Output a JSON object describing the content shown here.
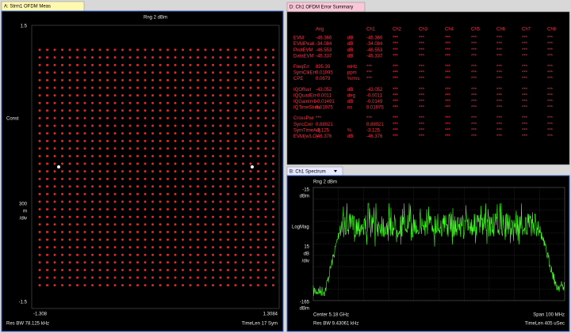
{
  "panels": {
    "constellation": {
      "tab": "A: Strm1 OFDM Meas",
      "range": "Rng 2 dBm",
      "y_top": "1.5",
      "y_mid": "Const",
      "scale": [
        "300",
        "m",
        "/div"
      ],
      "y_bottom": "-1.5",
      "x_left": "-1.308",
      "x_right": "1.3084",
      "res_bw": "Res BW 78.125 kHz",
      "time_len": "TimeLen 17  Sym"
    },
    "error_summary": {
      "tab": "D: Ch1 OFDM Error Summary",
      "header": [
        "Avg",
        "Ch1",
        "Ch2",
        "Ch3",
        "Ch4",
        "Ch5",
        "Ch6",
        "Ch7",
        "Ch8"
      ],
      "groups": [
        [
          [
            "EVM",
            "-46.366",
            "dB",
            "-46.366",
            "***",
            "***",
            "***",
            "***",
            "***",
            "***",
            "***"
          ],
          [
            "EVMPeak",
            "-34.084",
            "dB",
            "-34.084",
            "***",
            "***",
            "***",
            "***",
            "***",
            "***",
            "***"
          ],
          [
            "PilotEVM",
            "-46.553",
            "dB",
            "-46.553",
            "***",
            "***",
            "***",
            "***",
            "***",
            "***",
            "***"
          ],
          [
            "DataEVM",
            "-46.337",
            "dB",
            "-46.337",
            "***",
            "***",
            "***",
            "***",
            "***",
            "***",
            "***"
          ]
        ],
        [
          [
            "FreqErr",
            "895.39",
            "mHz",
            "***",
            "***",
            "***",
            "***",
            "***",
            "***",
            "***",
            "***"
          ],
          [
            "SymClkErr",
            "0.01095",
            "ppm",
            "***",
            "***",
            "***",
            "***",
            "***",
            "***",
            "***",
            "***"
          ],
          [
            "CPE",
            "0.0679",
            "%rms",
            "***",
            "***",
            "***",
            "***",
            "***",
            "***",
            "***",
            "***"
          ]
        ],
        [
          [
            "IQOffset",
            "-43.052",
            "dB",
            "-43.052",
            "***",
            "***",
            "***",
            "***",
            "***",
            "***",
            "***"
          ],
          [
            "IQQuadErr",
            "-0.0011",
            "deg",
            "-0.0011",
            "***",
            "***",
            "***",
            "***",
            "***",
            "***",
            "***"
          ],
          [
            "IQGainImb",
            "-0.01491",
            "dB",
            "-0.0149",
            "***",
            "***",
            "***",
            "***",
            "***",
            "***",
            "***"
          ],
          [
            "IQTimeSkew",
            "0.01975",
            "ns",
            "0.01975",
            "***",
            "***",
            "***",
            "***",
            "***",
            "***",
            "***"
          ]
        ],
        [
          [
            "CrossPwr",
            "***",
            "",
            "***",
            "***",
            "***",
            "***",
            "***",
            "***",
            "***",
            "***"
          ],
          [
            "SyncCorr",
            "0.88021",
            "",
            "0.88021",
            "***",
            "***",
            "***",
            "***",
            "***",
            "***",
            "***"
          ],
          [
            "SymTimeAdj",
            "-3.125",
            "%",
            "-3.125",
            "***",
            "***",
            "***",
            "***",
            "***",
            "***",
            "***"
          ],
          [
            "EVM(w/LO)",
            "-46.376",
            "dB",
            "-46.376",
            "***",
            "***",
            "***",
            "***",
            "***",
            "***",
            "***"
          ]
        ]
      ]
    },
    "spectrum": {
      "tab": "B: Ch1 Spectrum",
      "range": "Rng 2 dBm",
      "y_top": [
        "-15",
        "dBm"
      ],
      "y_mid": "LogMag",
      "scale": [
        "15",
        "dB",
        "/div"
      ],
      "y_bottom": [
        "-165",
        "dBm"
      ],
      "center": "Center 5.18 GHz",
      "span": "Span 100 MHz",
      "res_bw": "Res BW 9.43061 kHz",
      "time_len": "TimeLen 405 uSec"
    }
  }
}
